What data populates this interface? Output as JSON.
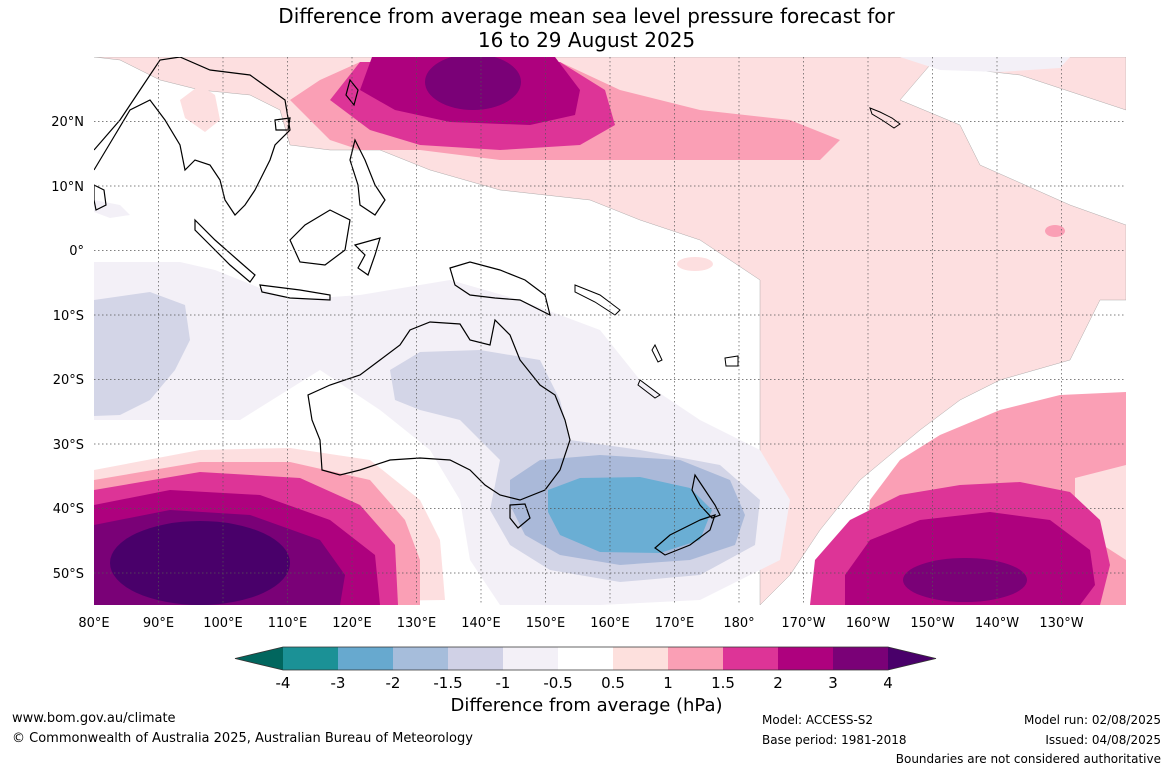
{
  "title": {
    "line1": "Difference from average mean sea level pressure forecast for",
    "line2": "16 to 29 August 2025"
  },
  "map": {
    "lon_ticks": [
      "80°E",
      "90°E",
      "100°E",
      "110°E",
      "120°E",
      "130°E",
      "140°E",
      "150°E",
      "160°E",
      "170°E",
      "180°",
      "170°W",
      "160°W",
      "150°W",
      "140°W",
      "130°W"
    ],
    "lat_ticks": [
      "20°N",
      "10°N",
      "0°",
      "10°S",
      "20°S",
      "30°S",
      "40°S",
      "50°S"
    ],
    "lon_range": [
      80,
      235
    ],
    "lat_range": [
      -55,
      30
    ],
    "fill_colors": {
      "neg0.5": "#f3f0f7",
      "neg1": "#d3d5e7",
      "neg1.5": "#aab9d9",
      "neg2": "#6aaed4",
      "pos0.5": "#fddfe0",
      "pos1": "#f9a0b8",
      "pos1.5": "#dd3497",
      "pos2": "#ae017e",
      "pos3": "#7a0177",
      "pos4": "#49006a"
    }
  },
  "colorbar": {
    "ticks": [
      "-4",
      "-3",
      "-2",
      "-1.5",
      "-1",
      "-0.5",
      "0.5",
      "1",
      "1.5",
      "2",
      "3",
      "4"
    ],
    "colors": [
      "#01665e",
      "#1b9196",
      "#67a9cf",
      "#a6bddb",
      "#d0d1e6",
      "#f3f0f7",
      "#ffffff",
      "#fde0dd",
      "#fa9fb5",
      "#dd3497",
      "#ae017e",
      "#7a0177",
      "#49006a"
    ],
    "label": "Difference from average (hPa)"
  },
  "footer": {
    "website": "www.bom.gov.au/climate",
    "copyright": "© Commonwealth of Australia 2025, Australian Bureau of Meteorology",
    "model": "Model: ACCESS-S2",
    "base_period": "Base period: 1981-2018",
    "model_run": "Model run: 02/08/2025",
    "issued": "Issued: 04/08/2025",
    "disclaimer": "Boundaries are not considered authoritative"
  }
}
